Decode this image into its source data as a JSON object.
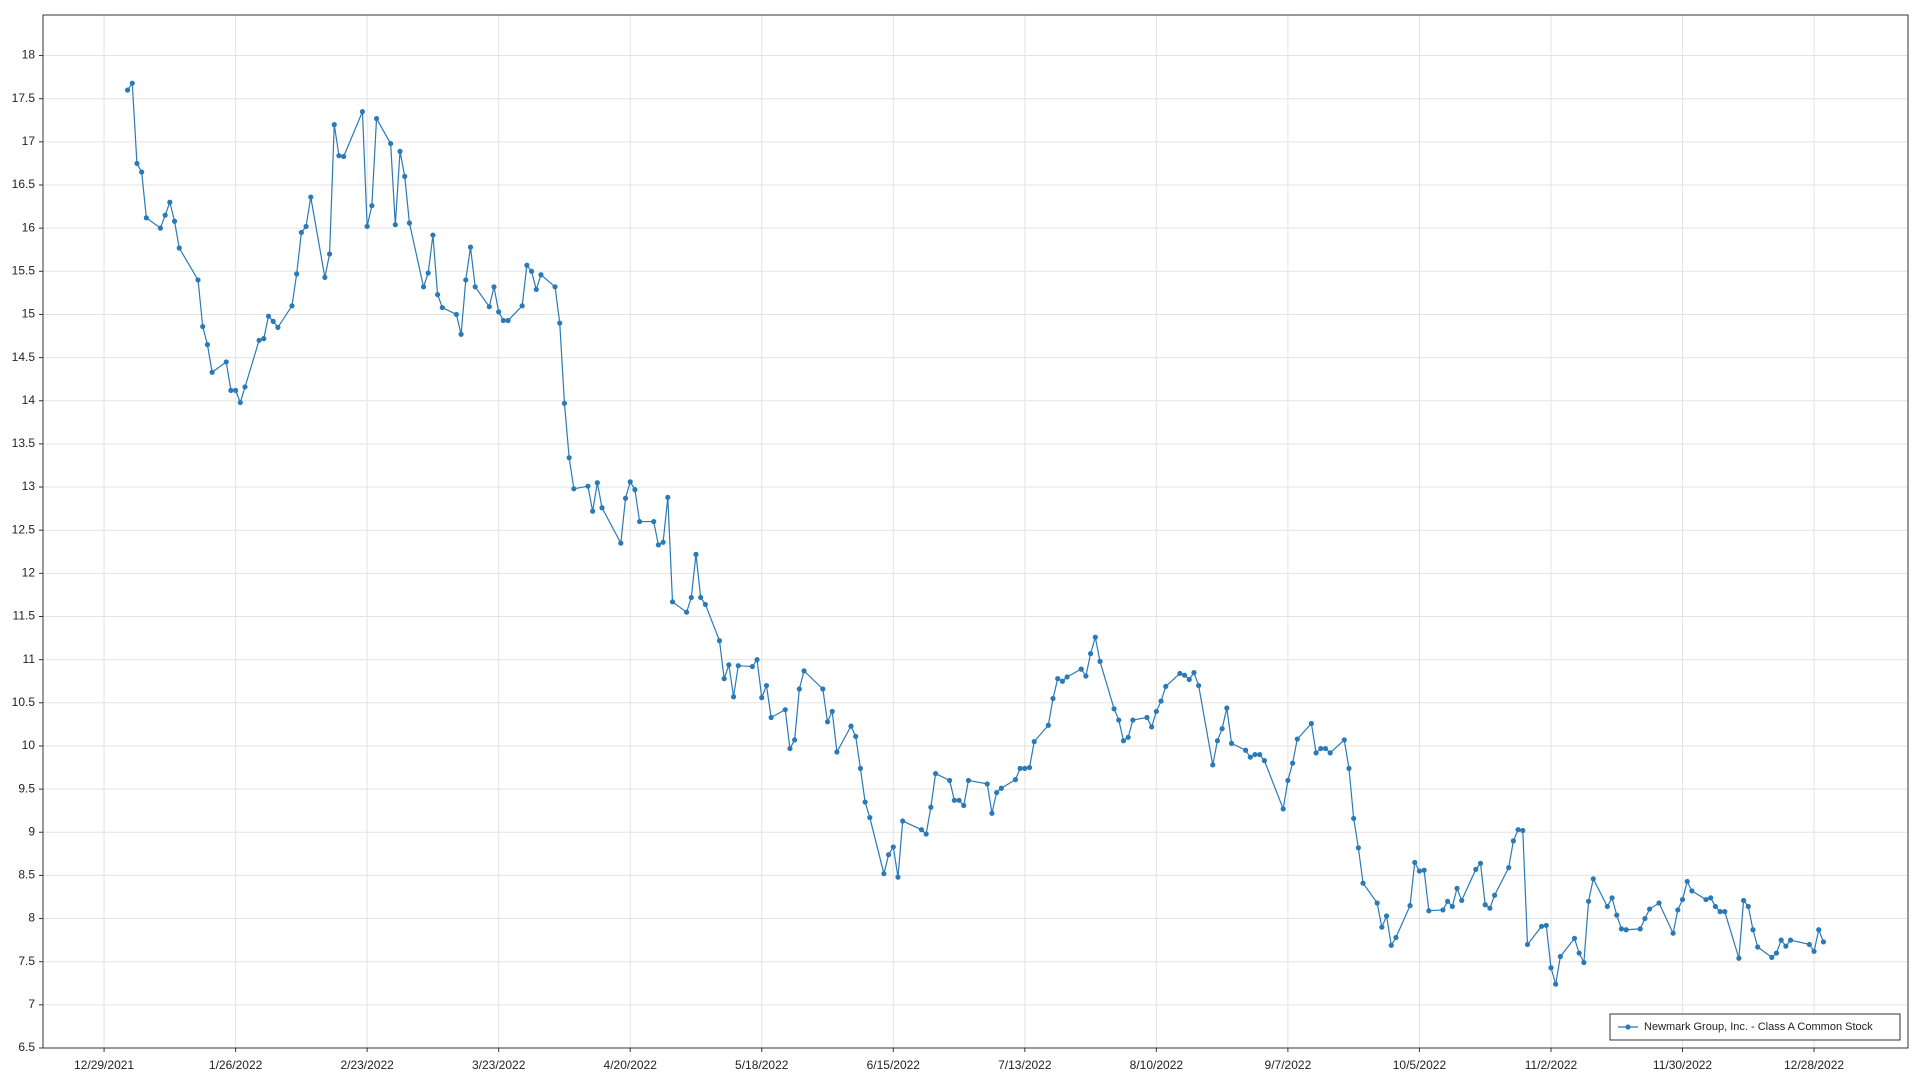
{
  "chart_data": {
    "type": "line",
    "x": [
      "1/3/2022",
      "1/4/2022",
      "1/5/2022",
      "1/6/2022",
      "1/7/2022",
      "1/10/2022",
      "1/11/2022",
      "1/12/2022",
      "1/13/2022",
      "1/14/2022",
      "1/18/2022",
      "1/19/2022",
      "1/20/2022",
      "1/21/2022",
      "1/24/2022",
      "1/25/2022",
      "1/26/2022",
      "1/27/2022",
      "1/28/2022",
      "1/31/2022",
      "2/1/2022",
      "2/2/2022",
      "2/3/2022",
      "2/4/2022",
      "2/7/2022",
      "2/8/2022",
      "2/9/2022",
      "2/10/2022",
      "2/11/2022",
      "2/14/2022",
      "2/15/2022",
      "2/16/2022",
      "2/17/2022",
      "2/18/2022",
      "2/22/2022",
      "2/23/2022",
      "2/24/2022",
      "2/25/2022",
      "2/28/2022",
      "3/1/2022",
      "3/2/2022",
      "3/3/2022",
      "3/4/2022",
      "3/7/2022",
      "3/8/2022",
      "3/9/2022",
      "3/10/2022",
      "3/11/2022",
      "3/14/2022",
      "3/15/2022",
      "3/16/2022",
      "3/17/2022",
      "3/18/2022",
      "3/21/2022",
      "3/22/2022",
      "3/23/2022",
      "3/24/2022",
      "3/25/2022",
      "3/28/2022",
      "3/29/2022",
      "3/30/2022",
      "3/31/2022",
      "4/1/2022",
      "4/4/2022",
      "4/5/2022",
      "4/6/2022",
      "4/7/2022",
      "4/8/2022",
      "4/11/2022",
      "4/12/2022",
      "4/13/2022",
      "4/14/2022",
      "4/18/2022",
      "4/19/2022",
      "4/20/2022",
      "4/21/2022",
      "4/22/2022",
      "4/25/2022",
      "4/26/2022",
      "4/27/2022",
      "4/28/2022",
      "4/29/2022",
      "5/2/2022",
      "5/3/2022",
      "5/4/2022",
      "5/5/2022",
      "5/6/2022",
      "5/9/2022",
      "5/10/2022",
      "5/11/2022",
      "5/12/2022",
      "5/13/2022",
      "5/16/2022",
      "5/17/2022",
      "5/18/2022",
      "5/19/2022",
      "5/20/2022",
      "5/23/2022",
      "5/24/2022",
      "5/25/2022",
      "5/26/2022",
      "5/27/2022",
      "5/31/2022",
      "6/1/2022",
      "6/2/2022",
      "6/3/2022",
      "6/6/2022",
      "6/7/2022",
      "6/8/2022",
      "6/9/2022",
      "6/10/2022",
      "6/13/2022",
      "6/14/2022",
      "6/15/2022",
      "6/16/2022",
      "6/17/2022",
      "6/21/2022",
      "6/22/2022",
      "6/23/2022",
      "6/24/2022",
      "6/27/2022",
      "6/28/2022",
      "6/29/2022",
      "6/30/2022",
      "7/1/2022",
      "7/5/2022",
      "7/6/2022",
      "7/7/2022",
      "7/8/2022",
      "7/11/2022",
      "7/12/2022",
      "7/13/2022",
      "7/14/2022",
      "7/15/2022",
      "7/18/2022",
      "7/19/2022",
      "7/20/2022",
      "7/21/2022",
      "7/22/2022",
      "7/25/2022",
      "7/26/2022",
      "7/27/2022",
      "7/28/2022",
      "7/29/2022",
      "8/1/2022",
      "8/2/2022",
      "8/3/2022",
      "8/4/2022",
      "8/5/2022",
      "8/8/2022",
      "8/9/2022",
      "8/10/2022",
      "8/11/2022",
      "8/12/2022",
      "8/15/2022",
      "8/16/2022",
      "8/17/2022",
      "8/18/2022",
      "8/19/2022",
      "8/22/2022",
      "8/23/2022",
      "8/24/2022",
      "8/25/2022",
      "8/26/2022",
      "8/29/2022",
      "8/30/2022",
      "8/31/2022",
      "9/1/2022",
      "9/2/2022",
      "9/6/2022",
      "9/7/2022",
      "9/8/2022",
      "9/9/2022",
      "9/12/2022",
      "9/13/2022",
      "9/14/2022",
      "9/15/2022",
      "9/16/2022",
      "9/19/2022",
      "9/20/2022",
      "9/21/2022",
      "9/22/2022",
      "9/23/2022",
      "9/26/2022",
      "9/27/2022",
      "9/28/2022",
      "9/29/2022",
      "9/30/2022",
      "10/3/2022",
      "10/4/2022",
      "10/5/2022",
      "10/6/2022",
      "10/7/2022",
      "10/10/2022",
      "10/11/2022",
      "10/12/2022",
      "10/13/2022",
      "10/14/2022",
      "10/17/2022",
      "10/18/2022",
      "10/19/2022",
      "10/20/2022",
      "10/21/2022",
      "10/24/2022",
      "10/25/2022",
      "10/26/2022",
      "10/27/2022",
      "10/28/2022",
      "10/31/2022",
      "11/1/2022",
      "11/2/2022",
      "11/3/2022",
      "11/4/2022",
      "11/7/2022",
      "11/8/2022",
      "11/9/2022",
      "11/10/2022",
      "11/11/2022",
      "11/14/2022",
      "11/15/2022",
      "11/16/2022",
      "11/17/2022",
      "11/18/2022",
      "11/21/2022",
      "11/22/2022",
      "11/23/2022",
      "11/25/2022",
      "11/28/2022",
      "11/29/2022",
      "11/30/2022",
      "12/1/2022",
      "12/2/2022",
      "12/5/2022",
      "12/6/2022",
      "12/7/2022",
      "12/8/2022",
      "12/9/2022",
      "12/12/2022",
      "12/13/2022",
      "12/14/2022",
      "12/15/2022",
      "12/16/2022",
      "12/19/2022",
      "12/20/2022",
      "12/21/2022",
      "12/22/2022",
      "12/23/2022",
      "12/27/2022",
      "12/28/2022",
      "12/29/2022",
      "12/30/2022"
    ],
    "series": [
      {
        "name": "Newmark Group, Inc. - Class A Common Stock",
        "color": "#2a7ab8",
        "values": [
          17.6,
          17.68,
          16.75,
          16.65,
          16.12,
          16.0,
          16.15,
          16.3,
          16.08,
          15.77,
          15.4,
          14.86,
          14.65,
          14.33,
          14.45,
          14.12,
          14.12,
          13.98,
          14.16,
          14.7,
          14.72,
          14.98,
          14.92,
          14.85,
          15.1,
          15.47,
          15.95,
          16.02,
          16.36,
          15.43,
          15.7,
          17.2,
          16.84,
          16.83,
          17.35,
          16.02,
          16.26,
          17.27,
          16.98,
          16.04,
          16.89,
          16.6,
          16.06,
          15.32,
          15.48,
          15.92,
          15.23,
          15.08,
          15.0,
          14.77,
          15.4,
          15.78,
          15.32,
          15.09,
          15.32,
          15.03,
          14.93,
          14.93,
          15.1,
          15.57,
          15.5,
          15.29,
          15.46,
          15.32,
          14.9,
          13.97,
          13.34,
          12.98,
          13.01,
          12.72,
          13.05,
          12.76,
          12.35,
          12.87,
          13.06,
          12.97,
          12.6,
          12.6,
          12.33,
          12.36,
          12.88,
          11.67,
          11.55,
          11.72,
          12.22,
          11.72,
          11.64,
          11.22,
          10.78,
          10.94,
          10.57,
          10.93,
          10.92,
          11.0,
          10.56,
          10.7,
          10.33,
          10.42,
          9.97,
          10.07,
          10.66,
          10.87,
          10.66,
          10.28,
          10.4,
          9.93,
          10.23,
          10.11,
          9.74,
          9.35,
          9.17,
          8.52,
          8.74,
          8.83,
          8.48,
          9.13,
          9.03,
          8.98,
          9.29,
          9.68,
          9.6,
          9.37,
          9.37,
          9.31,
          9.6,
          9.56,
          9.22,
          9.46,
          9.51,
          9.61,
          9.74,
          9.74,
          9.75,
          10.05,
          10.24,
          10.55,
          10.78,
          10.75,
          10.8,
          10.89,
          10.81,
          11.07,
          11.26,
          10.98,
          10.43,
          10.3,
          10.06,
          10.1,
          10.3,
          10.33,
          10.22,
          10.4,
          10.52,
          10.69,
          10.84,
          10.82,
          10.77,
          10.85,
          10.7,
          9.78,
          10.06,
          10.2,
          10.44,
          10.03,
          9.95,
          9.87,
          9.9,
          9.9,
          9.83,
          9.27,
          9.6,
          9.8,
          10.08,
          10.26,
          9.92,
          9.97,
          9.97,
          9.92,
          10.07,
          9.74,
          9.16,
          8.82,
          8.41,
          8.18,
          7.9,
          8.03,
          7.69,
          7.78,
          8.15,
          8.65,
          8.55,
          8.56,
          8.09,
          8.1,
          8.2,
          8.14,
          8.35,
          8.21,
          8.57,
          8.64,
          8.16,
          8.12,
          8.27,
          8.59,
          8.9,
          9.03,
          9.02,
          7.7,
          7.91,
          7.92,
          7.43,
          7.24,
          7.56,
          7.77,
          7.6,
          7.49,
          8.2,
          8.46,
          8.14,
          8.24,
          8.04,
          7.88,
          7.87,
          7.88,
          8.0,
          8.11,
          8.18,
          7.83,
          8.1,
          8.22,
          8.43,
          8.32,
          8.22,
          8.24,
          8.14,
          8.08,
          8.08,
          7.54,
          8.21,
          8.14,
          7.87,
          7.67,
          7.55,
          7.6,
          7.75,
          7.68,
          7.75,
          7.7,
          7.62,
          7.87,
          7.73
        ]
      }
    ],
    "xlim": [
      "12/16/2021",
      "1/17/2023"
    ],
    "xticks": [
      "12/29/2021",
      "1/26/2022",
      "2/23/2022",
      "3/23/2022",
      "4/20/2022",
      "5/18/2022",
      "6/15/2022",
      "7/13/2022",
      "8/10/2022",
      "9/7/2022",
      "10/5/2022",
      "11/2/2022",
      "11/30/2022",
      "12/28/2022"
    ],
    "ylim": [
      6.5,
      18.47
    ],
    "yticks": [
      6.5,
      7,
      7.5,
      8,
      8.5,
      9,
      9.5,
      10,
      10.5,
      11,
      11.5,
      12,
      12.5,
      13,
      13.5,
      14,
      14.5,
      15,
      15.5,
      16,
      16.5,
      17,
      17.5,
      18
    ],
    "grid": true,
    "legend": "lower right"
  }
}
